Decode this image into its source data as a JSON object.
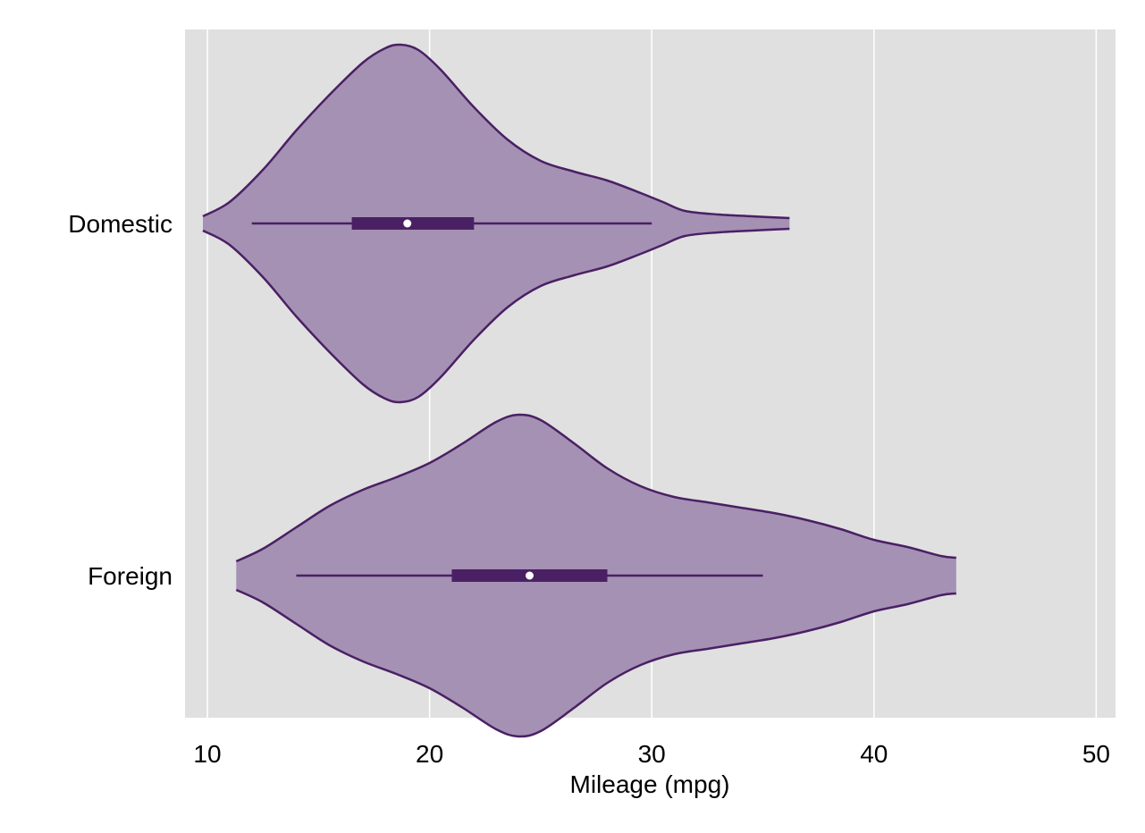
{
  "chart_data": {
    "type": "violin",
    "orientation": "horizontal",
    "xlabel": "Mileage (mpg)",
    "ylabel": "",
    "xlim": [
      9,
      51
    ],
    "x_ticks": [
      10,
      20,
      30,
      40,
      50
    ],
    "grid": true,
    "legend": "none",
    "colors": {
      "background": "#ffffff",
      "plot_background": "#e0e0e0",
      "gridline": "#ffffff",
      "violin_fill": "#a591b4",
      "violin_stroke": "#4a2064",
      "box": "#4a2064",
      "median_marker": "#ffffff"
    },
    "categories": [
      "Domestic",
      "Foreign"
    ],
    "series": [
      {
        "category": "Domestic",
        "min": 12,
        "q1": 16.5,
        "median": 19,
        "q3": 22,
        "max": 30,
        "density_range": [
          9.8,
          36.2
        ],
        "density": [
          [
            9.8,
            0.04
          ],
          [
            11,
            0.12
          ],
          [
            12.5,
            0.3
          ],
          [
            14,
            0.52
          ],
          [
            15.5,
            0.72
          ],
          [
            17,
            0.9
          ],
          [
            18,
            0.98
          ],
          [
            18.7,
            1.0
          ],
          [
            19.5,
            0.97
          ],
          [
            20.5,
            0.86
          ],
          [
            22,
            0.65
          ],
          [
            23.5,
            0.47
          ],
          [
            25,
            0.35
          ],
          [
            26.5,
            0.29
          ],
          [
            28,
            0.24
          ],
          [
            29.5,
            0.17
          ],
          [
            30.5,
            0.12
          ],
          [
            31.5,
            0.07
          ],
          [
            33,
            0.05
          ],
          [
            34.5,
            0.04
          ],
          [
            36.2,
            0.03
          ]
        ]
      },
      {
        "category": "Foreign",
        "min": 14,
        "q1": 21,
        "median": 24.5,
        "q3": 28,
        "max": 35,
        "density_range": [
          11.3,
          43.7
        ],
        "density": [
          [
            11.3,
            0.08
          ],
          [
            12.5,
            0.15
          ],
          [
            14,
            0.27
          ],
          [
            15.5,
            0.39
          ],
          [
            17,
            0.48
          ],
          [
            18.5,
            0.55
          ],
          [
            20,
            0.63
          ],
          [
            21.5,
            0.74
          ],
          [
            23,
            0.86
          ],
          [
            24,
            0.9
          ],
          [
            25,
            0.87
          ],
          [
            26.5,
            0.74
          ],
          [
            28,
            0.6
          ],
          [
            29.5,
            0.5
          ],
          [
            31,
            0.44
          ],
          [
            32.5,
            0.41
          ],
          [
            34,
            0.38
          ],
          [
            35.5,
            0.35
          ],
          [
            37,
            0.31
          ],
          [
            38.5,
            0.26
          ],
          [
            40,
            0.2
          ],
          [
            41.5,
            0.16
          ],
          [
            43,
            0.11
          ],
          [
            43.7,
            0.1
          ]
        ]
      }
    ]
  }
}
